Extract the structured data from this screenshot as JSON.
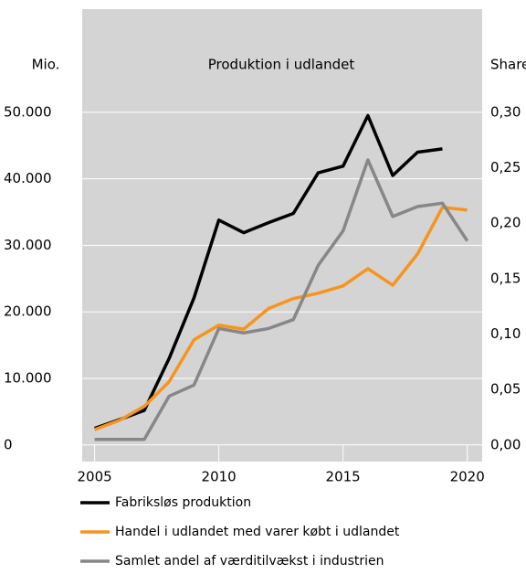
{
  "chart_data": {
    "type": "line",
    "title": "Produktion i udlandet",
    "y_label": "Mio.",
    "y2_label": "Share",
    "x": [
      2005,
      2006,
      2007,
      2008,
      2009,
      2010,
      2011,
      2012,
      2013,
      2014,
      2015,
      2016,
      2017,
      2018,
      2019,
      2020
    ],
    "series": [
      {
        "name": "Fabriksløs produktion",
        "color": "#000000",
        "values": [
          2500,
          3800,
          5200,
          13000,
          22100,
          33800,
          31900,
          33400,
          34800,
          40900,
          41900,
          49500,
          40500,
          44000,
          44500,
          null
        ]
      },
      {
        "name": "Handel i udlandet med varer købt i udlandet",
        "color": "#f7941d",
        "values": [
          2300,
          3700,
          5800,
          9500,
          15800,
          18000,
          17400,
          20500,
          22000,
          22800,
          23900,
          26500,
          24000,
          28700,
          35700,
          35300
        ]
      },
      {
        "name": "Samlet andel af værditilvækst i industrien",
        "color": "#878787",
        "axis": "y2",
        "values": [
          0.005,
          0.005,
          0.005,
          0.044,
          0.054,
          0.105,
          0.101,
          0.105,
          0.113,
          0.162,
          0.193,
          0.257,
          0.206,
          0.215,
          0.218,
          0.184
        ]
      }
    ],
    "xlim": [
      2004.5,
      2020.6
    ],
    "xticks": [
      2005,
      2010,
      2015,
      2020
    ],
    "ylim": [
      -2500,
      65500
    ],
    "yticks": [
      0,
      {
        "value": 10000,
        "label": "10.000"
      },
      {
        "value": 20000,
        "label": "20.000"
      },
      {
        "value": 30000,
        "label": "30.000"
      },
      {
        "value": 40000,
        "label": "40.000"
      },
      {
        "value": 50000,
        "label": "50.000"
      }
    ],
    "y2lim": [
      -0.015,
      0.393
    ],
    "y2ticks": [
      {
        "value": 0,
        "label": "0,00"
      },
      {
        "value": 0.05,
        "label": "0,05"
      },
      {
        "value": 0.1,
        "label": "0,10"
      },
      {
        "value": 0.15,
        "label": "0,15"
      },
      {
        "value": 0.2,
        "label": "0,20"
      },
      {
        "value": 0.25,
        "label": "0,25"
      },
      {
        "value": 0.3,
        "label": "0,30"
      }
    ],
    "grid": true,
    "background": "#d4d4d4"
  }
}
